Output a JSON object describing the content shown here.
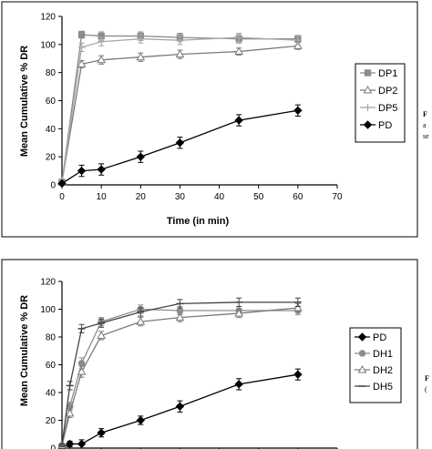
{
  "chart_data": [
    {
      "type": "line",
      "title": "",
      "xlabel": "Time (in min)",
      "ylabel": "Mean Cumulative % DR",
      "xlim": [
        0,
        70
      ],
      "ylim": [
        0,
        120
      ],
      "xticks": [
        "0",
        "10",
        "20",
        "30",
        "40",
        "50",
        "60",
        "70"
      ],
      "yticks": [
        "0",
        "20",
        "40",
        "60",
        "80",
        "100",
        "120"
      ],
      "grid": false,
      "legend_position": "right",
      "x": [
        0,
        5,
        10,
        20,
        30,
        45,
        60
      ],
      "series": [
        {
          "name": "DP1",
          "color": "#8c8c8c",
          "marker": "square",
          "values": [
            2,
            107,
            106,
            106,
            105,
            104,
            104
          ],
          "errors": [
            1,
            2.5,
            3,
            3,
            3,
            3,
            2.5
          ]
        },
        {
          "name": "DP2",
          "color": "#7a7a7a",
          "marker": "triangle-open",
          "values": [
            2,
            86,
            89,
            91,
            93,
            95,
            99
          ],
          "errors": [
            1,
            2.5,
            3,
            3,
            3,
            2.5,
            2.5
          ]
        },
        {
          "name": "DP5",
          "color": "#a8a8a8",
          "marker": "plus",
          "values": [
            2,
            98,
            102,
            104,
            103,
            105,
            103
          ],
          "errors": [
            1,
            3,
            3,
            3,
            3,
            3,
            3
          ]
        },
        {
          "name": "PD",
          "color": "#000000",
          "marker": "diamond",
          "values": [
            1,
            10,
            11,
            20,
            30,
            46,
            53
          ],
          "errors": [
            1,
            4,
            4,
            4,
            4,
            4,
            4
          ]
        }
      ]
    },
    {
      "type": "line",
      "title": "",
      "xlabel": "",
      "ylabel": "Mean Cumulative % DR",
      "xlim": [
        0,
        70
      ],
      "ylim": [
        0,
        120
      ],
      "yticks": [
        "0",
        "20",
        "40",
        "60",
        "80",
        "100",
        "120"
      ],
      "grid": false,
      "legend_position": "right",
      "x": [
        0,
        2,
        5,
        10,
        20,
        30,
        45,
        60
      ],
      "series": [
        {
          "name": "PD",
          "color": "#000000",
          "marker": "diamond",
          "values": [
            0,
            3,
            3,
            11,
            20,
            30,
            46,
            53
          ],
          "errors": [
            0,
            2,
            3,
            3,
            3,
            4,
            4,
            4
          ]
        },
        {
          "name": "DH1",
          "color": "#8c8c8c",
          "marker": "circle",
          "values": [
            2,
            30,
            61,
            91,
            100,
            99,
            99,
            99
          ],
          "errors": [
            1,
            3,
            4,
            3,
            3,
            3,
            3,
            3
          ]
        },
        {
          "name": "DH2",
          "color": "#7a7a7a",
          "marker": "triangle-open",
          "values": [
            2,
            25,
            55,
            81,
            91,
            94,
            97,
            101
          ],
          "errors": [
            1,
            3,
            4,
            3,
            3,
            3,
            3,
            3
          ]
        },
        {
          "name": "DH5",
          "color": "#444444",
          "marker": "dash",
          "values": [
            2,
            45,
            86,
            90,
            98,
            104,
            105,
            105
          ],
          "errors": [
            1,
            3,
            3,
            3,
            3,
            3,
            3,
            3
          ]
        }
      ]
    }
  ],
  "side_text": {
    "top": [
      "F",
      "a",
      "se"
    ],
    "bottom": [
      "F",
      "("
    ]
  }
}
